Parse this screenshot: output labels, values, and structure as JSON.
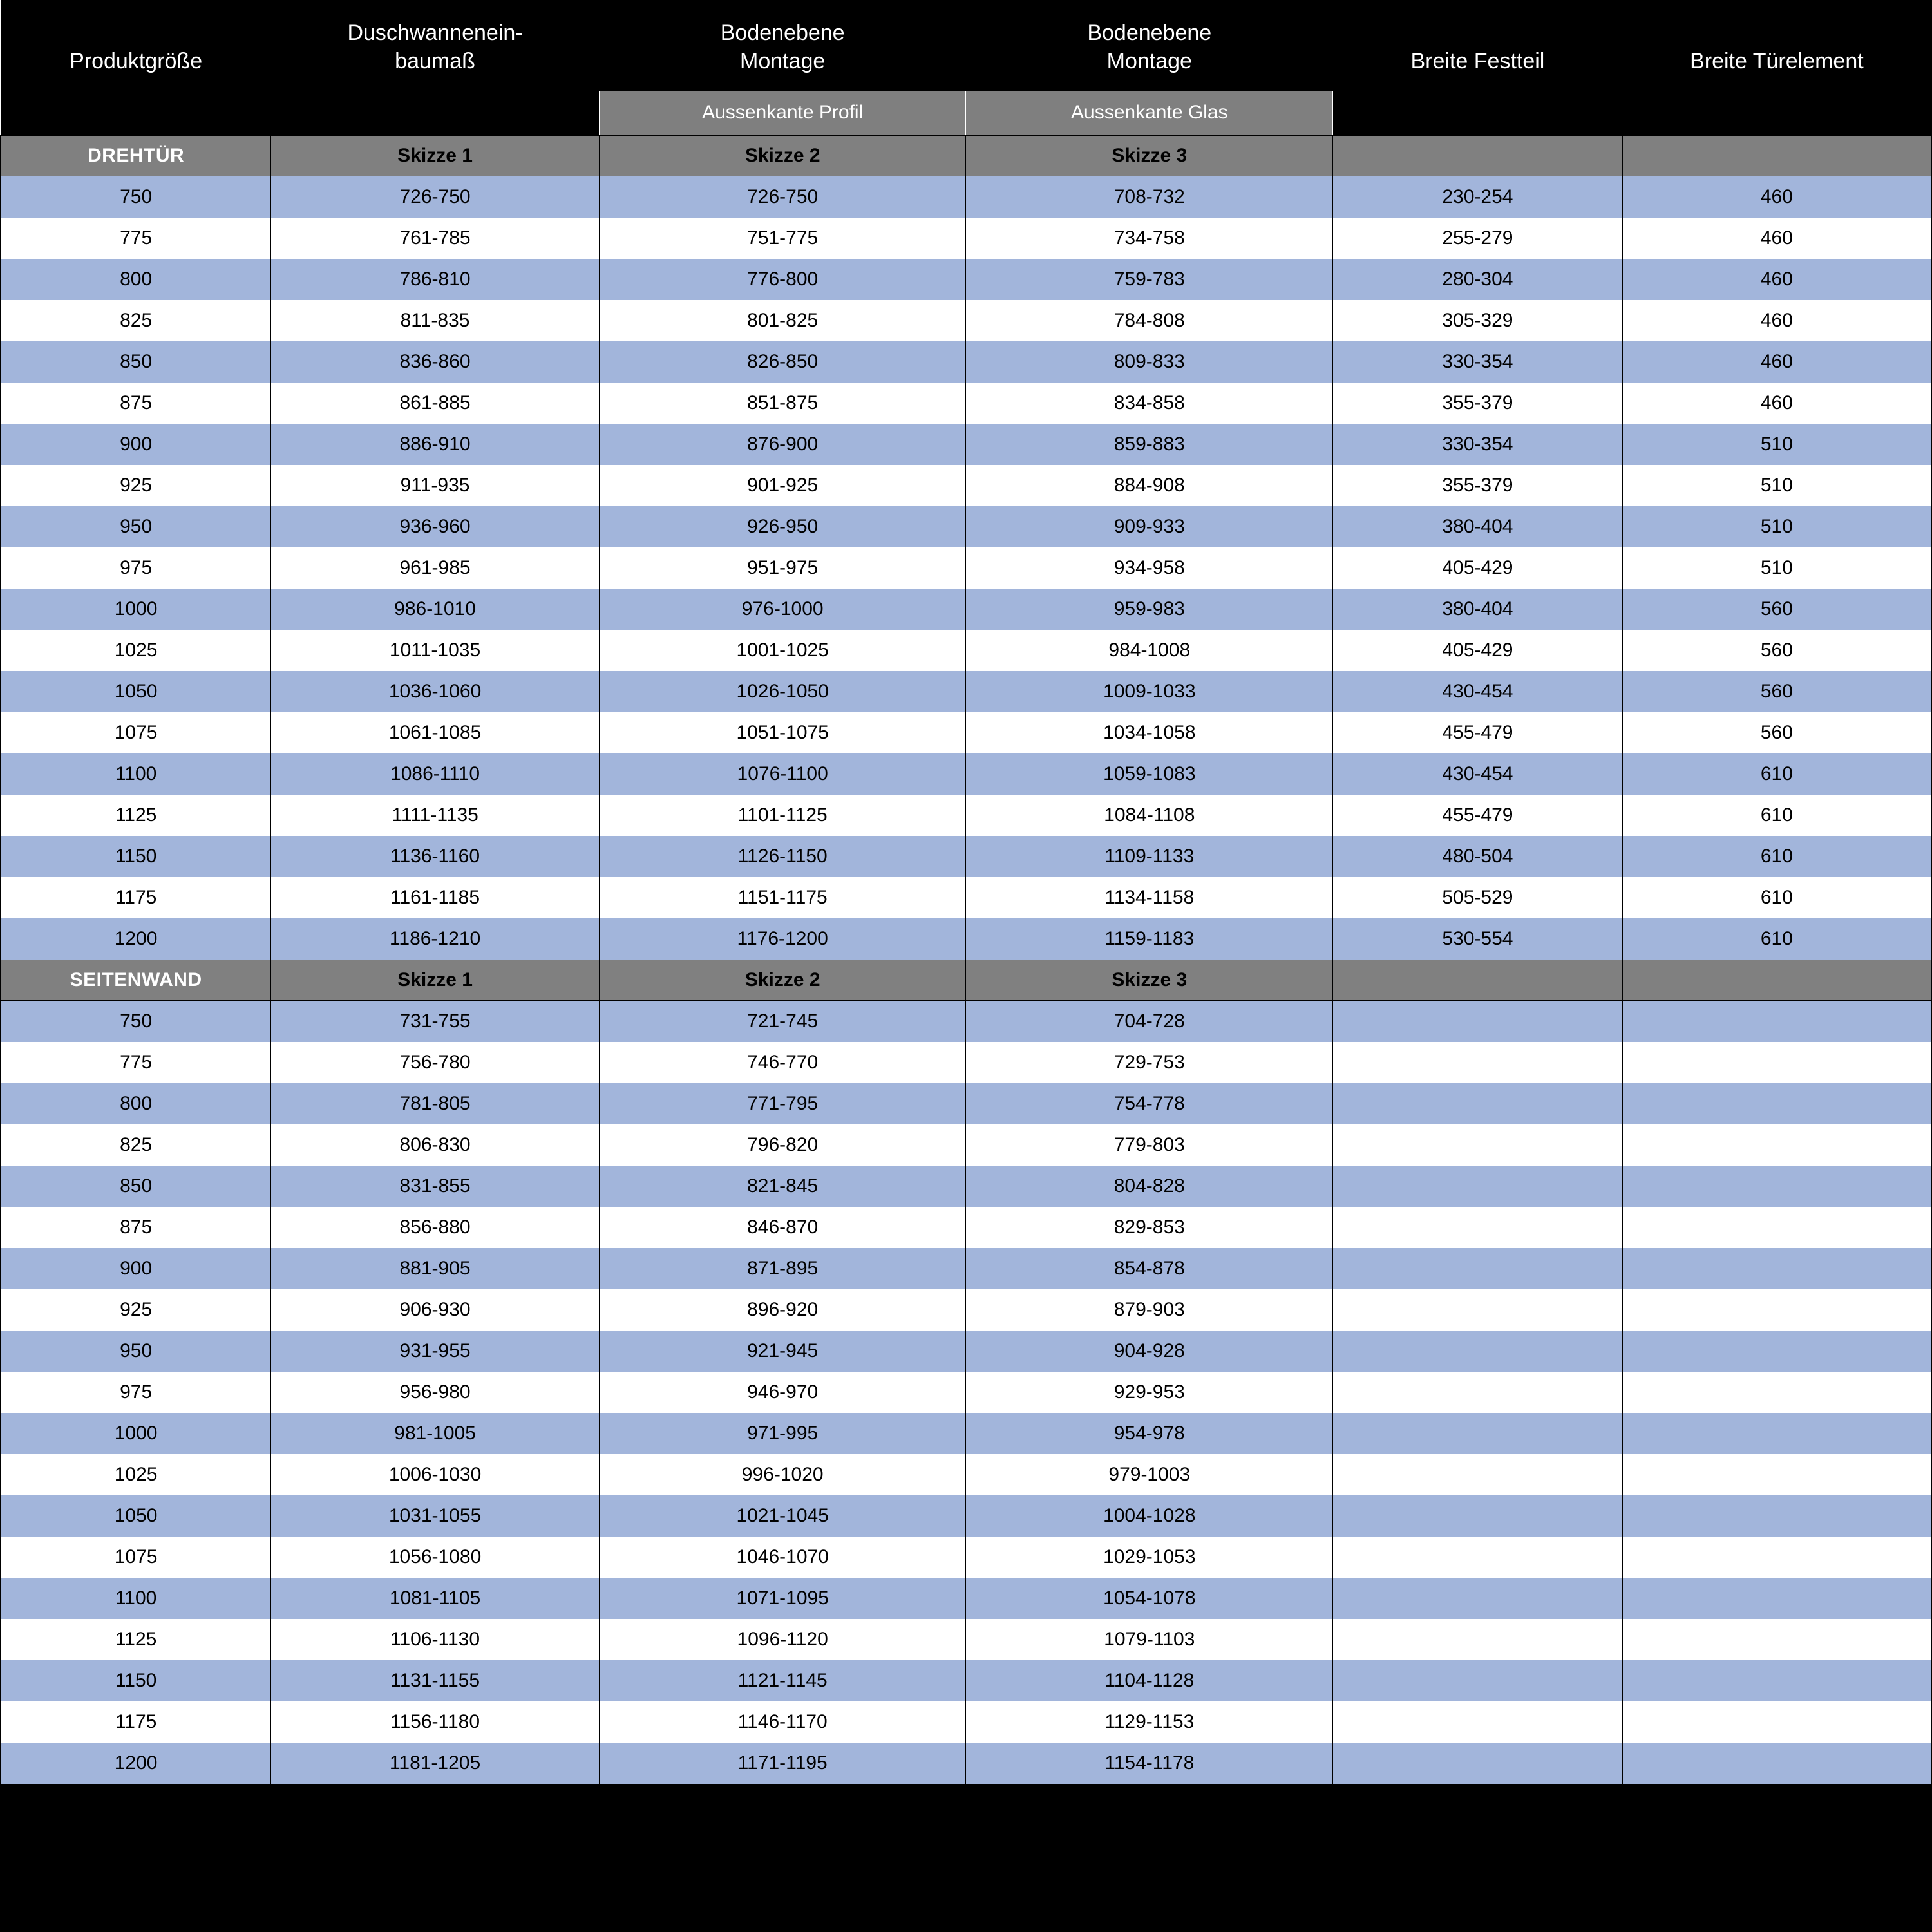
{
  "colors": {
    "header_bg": "#000000",
    "header_text": "#ffffff",
    "subheader_bg": "#7f7f7f",
    "section_bg": "#808080",
    "section_title_text": "#ffffff",
    "row_blue": "#a2b5db",
    "row_white": "#ffffff",
    "cell_text": "#000000",
    "border": "#000000"
  },
  "typography": {
    "header_fontsize_pt": 26,
    "subheader_fontsize_pt": 22,
    "section_fontsize_pt": 22,
    "body_fontsize_pt": 22,
    "font_family": "Arial"
  },
  "header": {
    "row1": [
      "",
      "Duschwannenein-",
      "Bodenebene",
      "Bodenebene",
      "",
      ""
    ],
    "row2": [
      "Produktgröße",
      "baumaß",
      "Montage",
      "Montage",
      "Breite Festteil",
      "Breite Türelement"
    ],
    "sub": [
      "",
      "",
      "Aussenkante Profil",
      "Aussenkante Glas",
      "",
      ""
    ]
  },
  "sections": [
    {
      "title": "DREHTÜR",
      "labels": [
        "Skizze 1",
        "Skizze 2",
        "Skizze 3",
        "",
        ""
      ],
      "rows": [
        [
          "750",
          "726-750",
          "726-750",
          "708-732",
          "230-254",
          "460"
        ],
        [
          "775",
          "761-785",
          "751-775",
          "734-758",
          "255-279",
          "460"
        ],
        [
          "800",
          "786-810",
          "776-800",
          "759-783",
          "280-304",
          "460"
        ],
        [
          "825",
          "811-835",
          "801-825",
          "784-808",
          "305-329",
          "460"
        ],
        [
          "850",
          "836-860",
          "826-850",
          "809-833",
          "330-354",
          "460"
        ],
        [
          "875",
          "861-885",
          "851-875",
          "834-858",
          "355-379",
          "460"
        ],
        [
          "900",
          "886-910",
          "876-900",
          "859-883",
          "330-354",
          "510"
        ],
        [
          "925",
          "911-935",
          "901-925",
          "884-908",
          "355-379",
          "510"
        ],
        [
          "950",
          "936-960",
          "926-950",
          "909-933",
          "380-404",
          "510"
        ],
        [
          "975",
          "961-985",
          "951-975",
          "934-958",
          "405-429",
          "510"
        ],
        [
          "1000",
          "986-1010",
          "976-1000",
          "959-983",
          "380-404",
          "560"
        ],
        [
          "1025",
          "1011-1035",
          "1001-1025",
          "984-1008",
          "405-429",
          "560"
        ],
        [
          "1050",
          "1036-1060",
          "1026-1050",
          "1009-1033",
          "430-454",
          "560"
        ],
        [
          "1075",
          "1061-1085",
          "1051-1075",
          "1034-1058",
          "455-479",
          "560"
        ],
        [
          "1100",
          "1086-1110",
          "1076-1100",
          "1059-1083",
          "430-454",
          "610"
        ],
        [
          "1125",
          "1111-1135",
          "1101-1125",
          "1084-1108",
          "455-479",
          "610"
        ],
        [
          "1150",
          "1136-1160",
          "1126-1150",
          "1109-1133",
          "480-504",
          "610"
        ],
        [
          "1175",
          "1161-1185",
          "1151-1175",
          "1134-1158",
          "505-529",
          "610"
        ],
        [
          "1200",
          "1186-1210",
          "1176-1200",
          "1159-1183",
          "530-554",
          "610"
        ]
      ]
    },
    {
      "title": "SEITENWAND",
      "labels": [
        "Skizze 1",
        "Skizze 2",
        "Skizze 3",
        "",
        ""
      ],
      "rows": [
        [
          "750",
          "731-755",
          "721-745",
          "704-728",
          "",
          ""
        ],
        [
          "775",
          "756-780",
          "746-770",
          "729-753",
          "",
          ""
        ],
        [
          "800",
          "781-805",
          "771-795",
          "754-778",
          "",
          ""
        ],
        [
          "825",
          "806-830",
          "796-820",
          "779-803",
          "",
          ""
        ],
        [
          "850",
          "831-855",
          "821-845",
          "804-828",
          "",
          ""
        ],
        [
          "875",
          "856-880",
          "846-870",
          "829-853",
          "",
          ""
        ],
        [
          "900",
          "881-905",
          "871-895",
          "854-878",
          "",
          ""
        ],
        [
          "925",
          "906-930",
          "896-920",
          "879-903",
          "",
          ""
        ],
        [
          "950",
          "931-955",
          "921-945",
          "904-928",
          "",
          ""
        ],
        [
          "975",
          "956-980",
          "946-970",
          "929-953",
          "",
          ""
        ],
        [
          "1000",
          "981-1005",
          "971-995",
          "954-978",
          "",
          ""
        ],
        [
          "1025",
          "1006-1030",
          "996-1020",
          "979-1003",
          "",
          ""
        ],
        [
          "1050",
          "1031-1055",
          "1021-1045",
          "1004-1028",
          "",
          ""
        ],
        [
          "1075",
          "1056-1080",
          "1046-1070",
          "1029-1053",
          "",
          ""
        ],
        [
          "1100",
          "1081-1105",
          "1071-1095",
          "1054-1078",
          "",
          ""
        ],
        [
          "1125",
          "1106-1130",
          "1096-1120",
          "1079-1103",
          "",
          ""
        ],
        [
          "1150",
          "1131-1155",
          "1121-1145",
          "1104-1128",
          "",
          ""
        ],
        [
          "1175",
          "1156-1180",
          "1146-1170",
          "1129-1153",
          "",
          ""
        ],
        [
          "1200",
          "1181-1205",
          "1171-1195",
          "1154-1178",
          "",
          ""
        ]
      ]
    }
  ]
}
